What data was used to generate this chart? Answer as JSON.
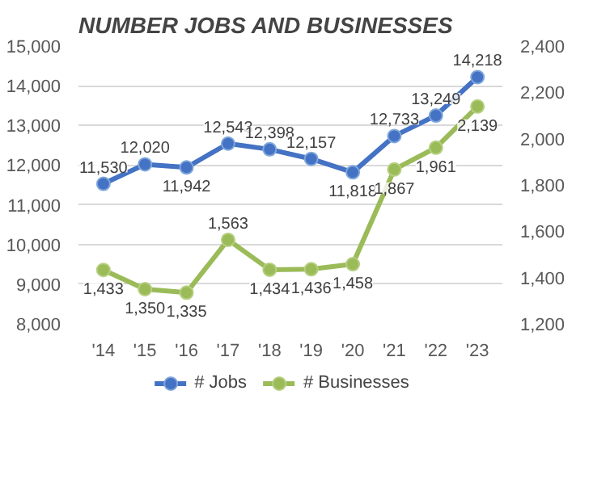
{
  "chart_data": {
    "type": "line",
    "title": "NUMBER JOBS AND BUSINESSES",
    "categories": [
      "'14",
      "'15",
      "'16",
      "'17",
      "'18",
      "'19",
      "'20",
      "'21",
      "'22",
      "'23"
    ],
    "series": [
      {
        "name": "# Jobs",
        "color": "#4472c4",
        "values": [
          11530,
          12020,
          11942,
          12543,
          12398,
          12157,
          11818,
          12733,
          13249,
          14218
        ],
        "value_labels": [
          "11,530",
          "12,020",
          "11,942",
          "12,543",
          "12,398",
          "12,157",
          "11,818",
          "12,733",
          "13,249",
          "14,218"
        ]
      },
      {
        "name": "# Businesses",
        "color": "#9bbb59",
        "axis": "y2",
        "values": [
          1433,
          1350,
          1335,
          1563,
          1434,
          1436,
          1458,
          1867,
          1961,
          2139
        ],
        "value_labels": [
          "1,433",
          "1,350",
          "1,335",
          "1,563",
          "1,434",
          "1,436",
          "1,458",
          "1,867",
          "1,961",
          "2,139"
        ]
      }
    ],
    "ylim": [
      8000,
      15000
    ],
    "yticks": [
      {
        "value": 8000,
        "label": "8,000"
      },
      {
        "value": 9000,
        "label": "9,000"
      },
      {
        "value": 10000,
        "label": "10,000"
      },
      {
        "value": 11000,
        "label": "11,000"
      },
      {
        "value": 12000,
        "label": "12,000"
      },
      {
        "value": 13000,
        "label": "13,000"
      },
      {
        "value": 14000,
        "label": "14,000"
      },
      {
        "value": 15000,
        "label": "15,000"
      }
    ],
    "y2lim": [
      1200,
      2400
    ],
    "y2ticks": [
      {
        "value": 1200,
        "label": "1,200"
      },
      {
        "value": 1400,
        "label": "1,400"
      },
      {
        "value": 1600,
        "label": "1,600"
      },
      {
        "value": 1800,
        "label": "1,800"
      },
      {
        "value": 2000,
        "label": "2,000"
      },
      {
        "value": 2200,
        "label": "2,200"
      },
      {
        "value": 2400,
        "label": "2,400"
      }
    ],
    "legend": "bottom",
    "grid": "y",
    "marker": "circle",
    "line_style": "solid"
  }
}
